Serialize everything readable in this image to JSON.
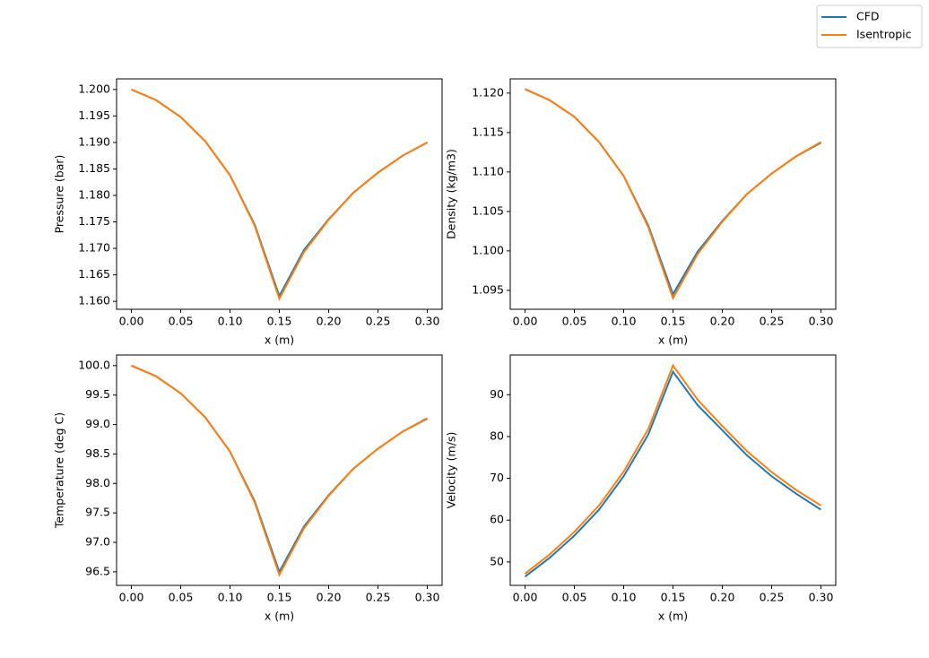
{
  "legend": "upper right",
  "chart_data": [
    {
      "type": "line",
      "xlabel": "x (m)",
      "ylabel": "Pressure (bar)",
      "x": [
        0,
        0.025,
        0.05,
        0.075,
        0.1,
        0.125,
        0.15,
        0.175,
        0.2,
        0.225,
        0.25,
        0.275,
        0.3
      ],
      "series": [
        {
          "name": "CFD",
          "color": "#1f77b4",
          "values": [
            1.2,
            1.198,
            1.1948,
            1.1902,
            1.1838,
            1.1745,
            1.161,
            1.1697,
            1.1755,
            1.1805,
            1.1843,
            1.1875,
            1.19
          ]
        },
        {
          "name": "Isentropic",
          "color": "#ff7f0e",
          "values": [
            1.2,
            1.198,
            1.1948,
            1.1902,
            1.1838,
            1.1743,
            1.1605,
            1.1693,
            1.1754,
            1.1805,
            1.1843,
            1.1875,
            1.19
          ]
        }
      ],
      "xlim": [
        -0.015,
        0.315
      ],
      "xticks": [
        {
          "value": 0,
          "label": "0.00"
        },
        {
          "value": 0.05,
          "label": "0.05"
        },
        {
          "value": 0.1,
          "label": "0.10"
        },
        {
          "value": 0.15,
          "label": "0.15"
        },
        {
          "value": 0.2,
          "label": "0.20"
        },
        {
          "value": 0.25,
          "label": "0.25"
        },
        {
          "value": 0.3,
          "label": "0.30"
        }
      ],
      "ylim": [
        1.1585,
        1.202
      ],
      "yticks": [
        {
          "value": 1.16,
          "label": "1.160"
        },
        {
          "value": 1.165,
          "label": "1.165"
        },
        {
          "value": 1.17,
          "label": "1.170"
        },
        {
          "value": 1.175,
          "label": "1.175"
        },
        {
          "value": 1.18,
          "label": "1.180"
        },
        {
          "value": 1.185,
          "label": "1.185"
        },
        {
          "value": 1.19,
          "label": "1.190"
        },
        {
          "value": 1.195,
          "label": "1.195"
        },
        {
          "value": 1.2,
          "label": "1.200"
        }
      ]
    },
    {
      "type": "line",
      "xlabel": "x (m)",
      "ylabel": "Density (kg/m3)",
      "x": [
        0,
        0.025,
        0.05,
        0.075,
        0.1,
        0.125,
        0.15,
        0.175,
        0.2,
        0.225,
        0.25,
        0.275,
        0.3
      ],
      "series": [
        {
          "name": "CFD",
          "color": "#1f77b4",
          "values": [
            1.1205,
            1.1191,
            1.117,
            1.1138,
            1.1095,
            1.1032,
            1.0945,
            1.0999,
            1.1038,
            1.1072,
            1.1098,
            1.112,
            1.1137
          ]
        },
        {
          "name": "Isentropic",
          "color": "#ff7f0e",
          "values": [
            1.1205,
            1.1191,
            1.117,
            1.1138,
            1.1095,
            1.103,
            1.094,
            1.0996,
            1.1037,
            1.1072,
            1.1098,
            1.112,
            1.1138
          ]
        }
      ],
      "xlim": [
        -0.015,
        0.315
      ],
      "xticks": [
        {
          "value": 0,
          "label": "0.00"
        },
        {
          "value": 0.05,
          "label": "0.05"
        },
        {
          "value": 0.1,
          "label": "0.10"
        },
        {
          "value": 0.15,
          "label": "0.15"
        },
        {
          "value": 0.2,
          "label": "0.20"
        },
        {
          "value": 0.25,
          "label": "0.25"
        },
        {
          "value": 0.3,
          "label": "0.30"
        }
      ],
      "ylim": [
        1.0926,
        1.1218
      ],
      "yticks": [
        {
          "value": 1.095,
          "label": "1.095"
        },
        {
          "value": 1.1,
          "label": "1.100"
        },
        {
          "value": 1.105,
          "label": "1.105"
        },
        {
          "value": 1.11,
          "label": "1.110"
        },
        {
          "value": 1.115,
          "label": "1.115"
        },
        {
          "value": 1.12,
          "label": "1.120"
        }
      ]
    },
    {
      "type": "line",
      "xlabel": "x (m)",
      "ylabel": "Temperature (deg C)",
      "x": [
        0,
        0.025,
        0.05,
        0.075,
        0.1,
        0.125,
        0.15,
        0.175,
        0.2,
        0.225,
        0.25,
        0.275,
        0.3
      ],
      "series": [
        {
          "name": "CFD",
          "color": "#1f77b4",
          "values": [
            100,
            99.82,
            99.53,
            99.12,
            98.54,
            97.7,
            96.5,
            97.27,
            97.8,
            98.25,
            98.59,
            98.88,
            99.1
          ]
        },
        {
          "name": "Isentropic",
          "color": "#ff7f0e",
          "values": [
            100,
            99.82,
            99.53,
            99.12,
            98.54,
            97.68,
            96.45,
            97.24,
            97.79,
            98.25,
            98.59,
            98.88,
            99.11
          ]
        }
      ],
      "xlim": [
        -0.015,
        0.315
      ],
      "xticks": [
        {
          "value": 0,
          "label": "0.00"
        },
        {
          "value": 0.05,
          "label": "0.05"
        },
        {
          "value": 0.1,
          "label": "0.10"
        },
        {
          "value": 0.15,
          "label": "0.15"
        },
        {
          "value": 0.2,
          "label": "0.20"
        },
        {
          "value": 0.25,
          "label": "0.25"
        },
        {
          "value": 0.3,
          "label": "0.30"
        }
      ],
      "ylim": [
        96.27,
        100.18
      ],
      "yticks": [
        96.5,
        {
          "value": 97,
          "label": "97.0"
        },
        97.5,
        {
          "value": 98,
          "label": "98.0"
        },
        98.5,
        {
          "value": 99,
          "label": "99.0"
        },
        99.5,
        {
          "value": 100,
          "label": "100.0"
        }
      ]
    },
    {
      "type": "line",
      "xlabel": "x (m)",
      "ylabel": "Velocity (m/s)",
      "x": [
        0,
        0.025,
        0.05,
        0.075,
        0.1,
        0.125,
        0.15,
        0.175,
        0.2,
        0.225,
        0.25,
        0.275,
        0.3
      ],
      "series": [
        {
          "name": "CFD",
          "color": "#1f77b4",
          "values": [
            46.5,
            51,
            56.3,
            62.5,
            70.5,
            80.5,
            95.5,
            87.5,
            81.5,
            75.5,
            70.5,
            66.3,
            62.5
          ]
        },
        {
          "name": "Isentropic",
          "color": "#ff7f0e",
          "values": [
            47.2,
            51.8,
            57.2,
            63.5,
            71.6,
            81.8,
            97,
            88.8,
            82.5,
            76.5,
            71.5,
            67.2,
            63.5
          ]
        }
      ],
      "xlim": [
        -0.015,
        0.315
      ],
      "xticks": [
        {
          "value": 0,
          "label": "0.00"
        },
        {
          "value": 0.05,
          "label": "0.05"
        },
        {
          "value": 0.1,
          "label": "0.10"
        },
        {
          "value": 0.15,
          "label": "0.15"
        },
        {
          "value": 0.2,
          "label": "0.20"
        },
        {
          "value": 0.25,
          "label": "0.25"
        },
        {
          "value": 0.3,
          "label": "0.30"
        }
      ],
      "ylim": [
        44.4,
        99.5
      ],
      "yticks": [
        50,
        60,
        70,
        80,
        90
      ]
    }
  ]
}
